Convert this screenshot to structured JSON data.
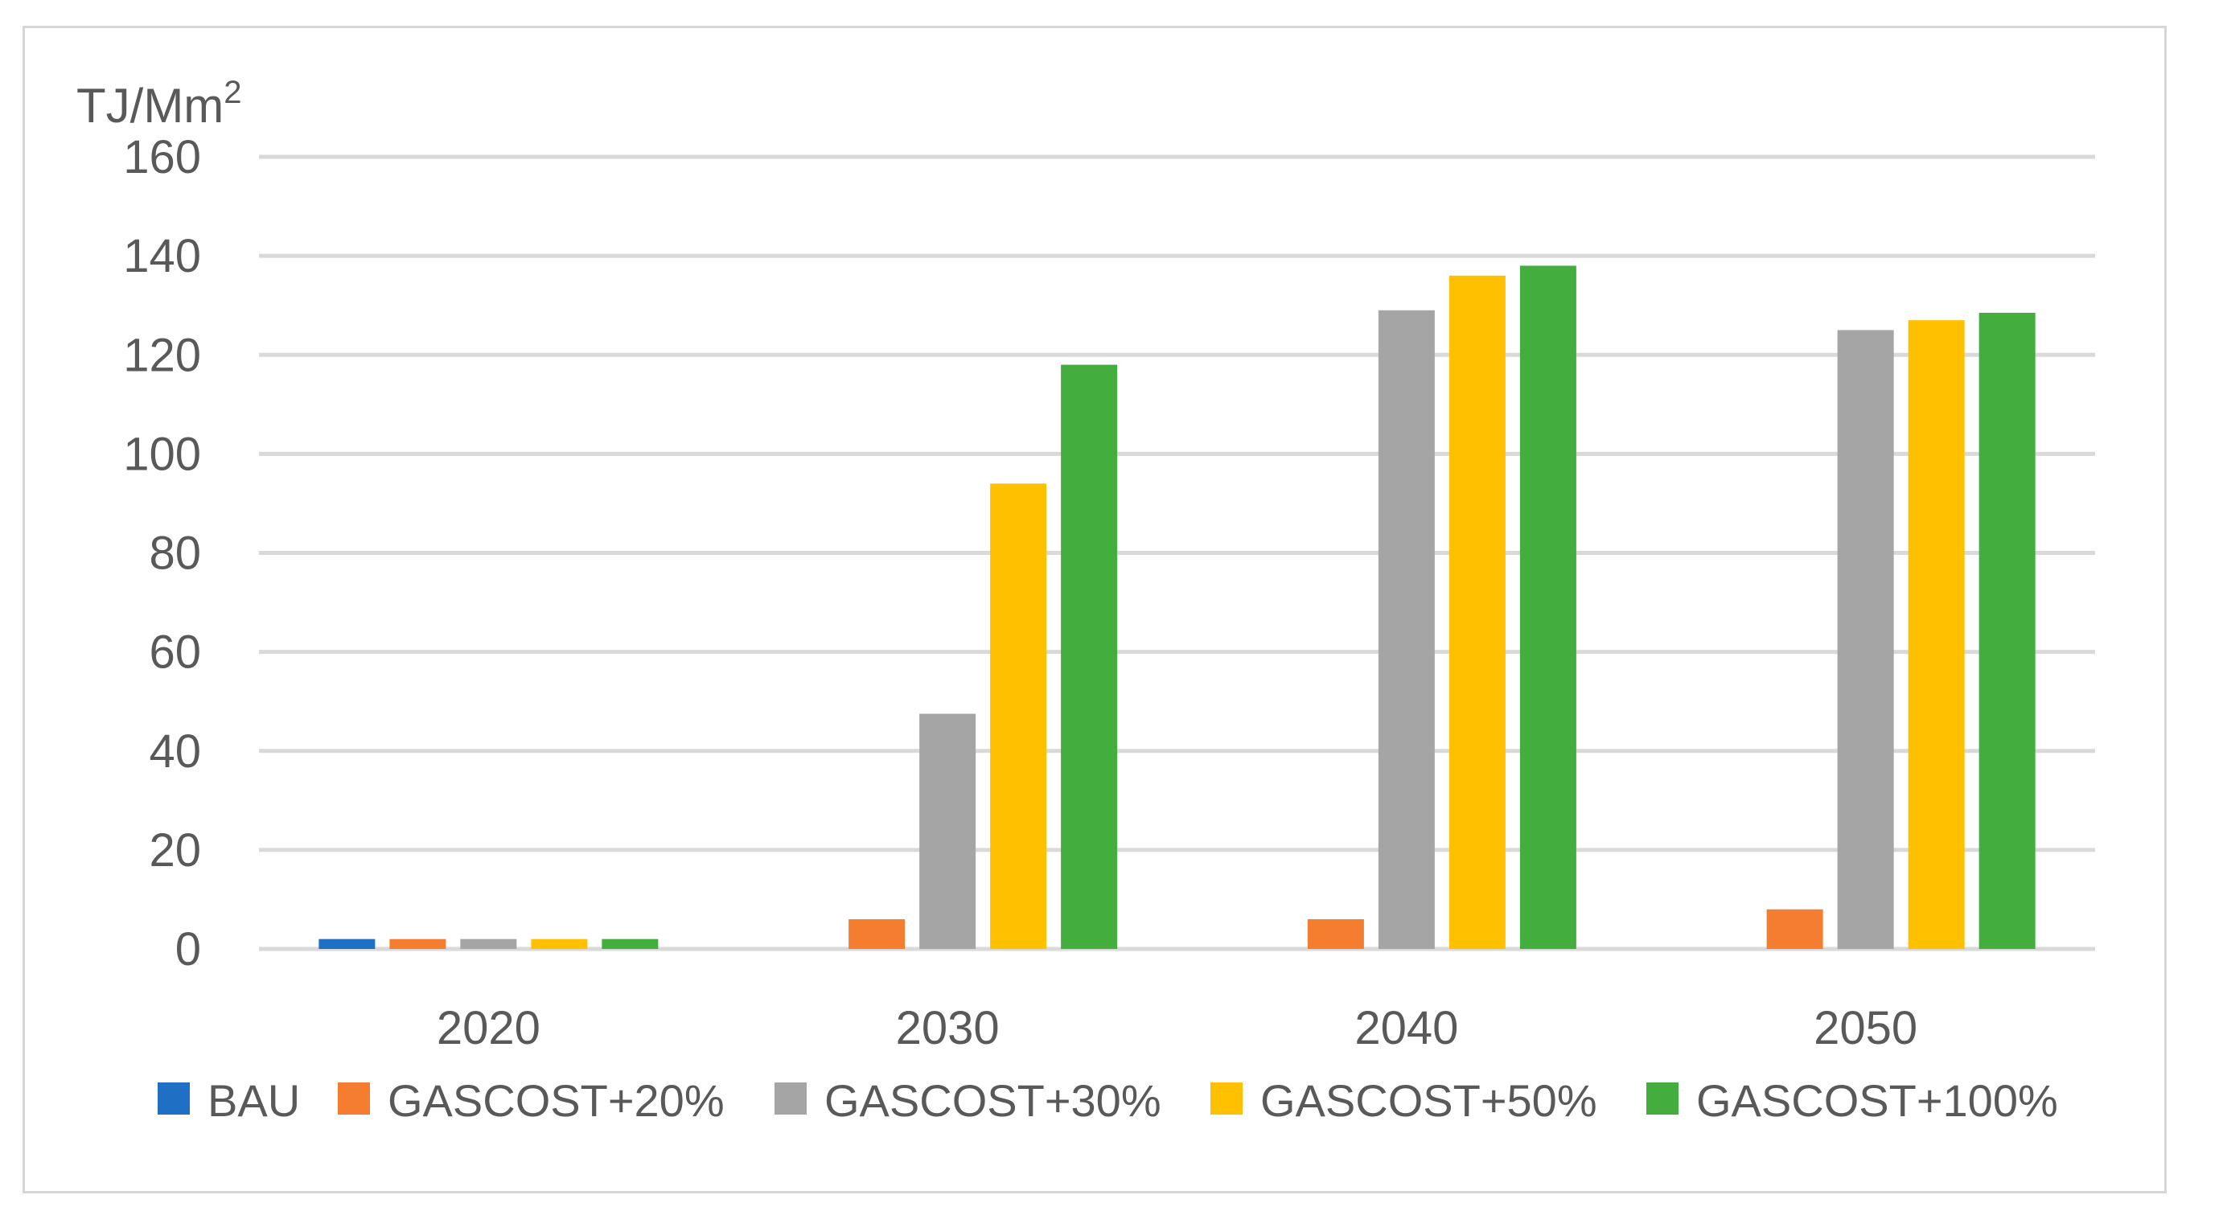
{
  "chart_data": {
    "type": "bar",
    "title": "",
    "ylabel": "TJ/Mm",
    "ylabel_superscript": "2",
    "xlabel": "",
    "ylim": [
      0,
      160
    ],
    "yticks": [
      0,
      20,
      40,
      60,
      80,
      100,
      120,
      140,
      160
    ],
    "grid": true,
    "legend_position": "bottom",
    "categories": [
      "2020",
      "2030",
      "2040",
      "2050"
    ],
    "series": [
      {
        "name": "BAU",
        "color": "#1F6FC5",
        "values": [
          2,
          0,
          0,
          0
        ]
      },
      {
        "name": "GASCOST+20%",
        "color": "#F47D30",
        "values": [
          2,
          6,
          6,
          8
        ]
      },
      {
        "name": "GASCOST+30%",
        "color": "#A5A5A5",
        "values": [
          2,
          47.5,
          129,
          125
        ]
      },
      {
        "name": "GASCOST+50%",
        "color": "#FFC000",
        "values": [
          2,
          94,
          136,
          127
        ]
      },
      {
        "name": "GASCOST+100%",
        "color": "#43AD3D",
        "values": [
          2,
          118,
          138,
          128.5
        ]
      }
    ]
  }
}
